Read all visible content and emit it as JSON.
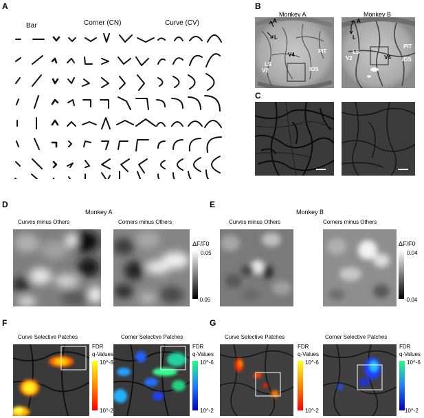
{
  "panels": {
    "A": "A",
    "B": "B",
    "C": "C",
    "D": "D",
    "E": "E",
    "F": "F",
    "G": "G"
  },
  "panelA": {
    "bar": "Bar",
    "corner": "Corner (CN)",
    "curve": "Curve (CV)"
  },
  "panelB": {
    "monkeyA": "Monkey A",
    "monkeyB": "Monkey B",
    "arrowA": "A",
    "arrowL": "L",
    "v4": "V4",
    "pit": "PIT",
    "ls": "LS",
    "v2": "V2",
    "ios": "IOS"
  },
  "panelD": {
    "monkey": "Monkey A",
    "left": "Curves minus Others",
    "right": "Corners minus Others",
    "cbar_label": "ΔF/F0",
    "cbar_max": "0.05",
    "cbar_min": "-0.05"
  },
  "panelE": {
    "monkey": "Monkey B",
    "left": "Curves minus Others",
    "right": "Corners minus Others",
    "cbar_label": "ΔF/F0",
    "cbar_max": "0.04",
    "cbar_min": "-0.04"
  },
  "panelF": {
    "left": "Curve Selective Patches",
    "right": "Corner Selective Patches",
    "fdr": "FDR",
    "qvals": "q-Values",
    "top": "10^-6",
    "bottom": "10^-2"
  },
  "panelG": {
    "left": "Curve Selective Patches",
    "right": "Corner Selective Patches",
    "fdr": "FDR",
    "qvals": "q-Values",
    "top": "10^-6",
    "bottom": "10^-2"
  },
  "colors": {
    "hot_top": "#ffff20",
    "hot_mid": "#ff8800",
    "hot_bottom": "#ff0000",
    "cool_top": "#20ff80",
    "cool_mid": "#2080ff",
    "cool_bottom": "#0000c0"
  }
}
